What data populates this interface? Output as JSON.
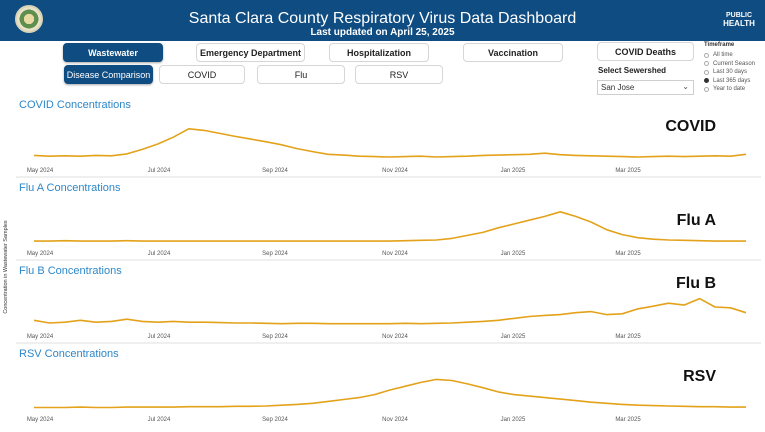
{
  "header": {
    "title": "Santa Clara County Respiratory Virus Data Dashboard",
    "subtitle": "Last updated on April 25, 2025",
    "logo_text_top": "PUBLIC",
    "logo_text_bottom": "HEALTH"
  },
  "nav": {
    "row1": [
      "Wastewater",
      "Emergency Department",
      "Hospitalization",
      "Vaccination",
      "COVID Deaths"
    ],
    "row2": [
      "Disease Comparison",
      "COVID",
      "Flu",
      "RSV"
    ]
  },
  "sewershed": {
    "label": "Select Sewershed",
    "value": "San Jose"
  },
  "timeframe": {
    "label": "Timeframe",
    "options": [
      "All time",
      "Current Season",
      "Last 30 days",
      "Last 365 days",
      "Year to date"
    ],
    "selected": "Last 365 days"
  },
  "y_axis_title": "Concentration in Wastewater Samples",
  "x_ticks": [
    "May 2024",
    "Jul 2024",
    "Sep 2024",
    "Nov 2024",
    "Jan 2025",
    "Mar 2025"
  ],
  "line_color": "#e3a21a",
  "panels": [
    {
      "title": "COVID Concentrations",
      "label": "COVID",
      "values": [
        0.12,
        0.1,
        0.11,
        0.1,
        0.12,
        0.11,
        0.16,
        0.28,
        0.42,
        0.6,
        0.82,
        0.78,
        0.7,
        0.62,
        0.55,
        0.48,
        0.4,
        0.3,
        0.22,
        0.15,
        0.13,
        0.1,
        0.09,
        0.08,
        0.09,
        0.1,
        0.08,
        0.09,
        0.1,
        0.12,
        0.13,
        0.14,
        0.15,
        0.18,
        0.14,
        0.12,
        0.11,
        0.1,
        0.09,
        0.08,
        0.09,
        0.1,
        0.09,
        0.1,
        0.11,
        0.1,
        0.15
      ]
    },
    {
      "title": "Flu A Concentrations",
      "label": "Flu A",
      "values": [
        0.05,
        0.05,
        0.06,
        0.05,
        0.05,
        0.05,
        0.06,
        0.05,
        0.05,
        0.05,
        0.05,
        0.05,
        0.05,
        0.05,
        0.05,
        0.05,
        0.05,
        0.05,
        0.05,
        0.05,
        0.05,
        0.05,
        0.05,
        0.05,
        0.06,
        0.07,
        0.08,
        0.12,
        0.2,
        0.28,
        0.4,
        0.5,
        0.6,
        0.7,
        0.82,
        0.7,
        0.55,
        0.35,
        0.22,
        0.14,
        0.1,
        0.08,
        0.07,
        0.06,
        0.05,
        0.05,
        0.05
      ]
    },
    {
      "title": "Flu B Concentrations",
      "label": "Flu B",
      "values": [
        0.15,
        0.08,
        0.1,
        0.15,
        0.1,
        0.12,
        0.18,
        0.12,
        0.1,
        0.12,
        0.1,
        0.1,
        0.09,
        0.08,
        0.08,
        0.07,
        0.06,
        0.07,
        0.07,
        0.06,
        0.06,
        0.06,
        0.06,
        0.06,
        0.07,
        0.06,
        0.07,
        0.08,
        0.1,
        0.12,
        0.15,
        0.2,
        0.25,
        0.28,
        0.3,
        0.35,
        0.38,
        0.3,
        0.32,
        0.45,
        0.52,
        0.6,
        0.55,
        0.72,
        0.5,
        0.48,
        0.35
      ]
    },
    {
      "title": "RSV Concentrations",
      "label": "RSV",
      "values": [
        0.04,
        0.04,
        0.04,
        0.05,
        0.04,
        0.04,
        0.05,
        0.05,
        0.05,
        0.05,
        0.06,
        0.06,
        0.06,
        0.07,
        0.07,
        0.08,
        0.1,
        0.12,
        0.15,
        0.2,
        0.25,
        0.3,
        0.38,
        0.5,
        0.6,
        0.7,
        0.78,
        0.75,
        0.66,
        0.56,
        0.45,
        0.38,
        0.34,
        0.3,
        0.26,
        0.22,
        0.18,
        0.15,
        0.12,
        0.1,
        0.09,
        0.08,
        0.07,
        0.06,
        0.06,
        0.05,
        0.05
      ]
    }
  ]
}
